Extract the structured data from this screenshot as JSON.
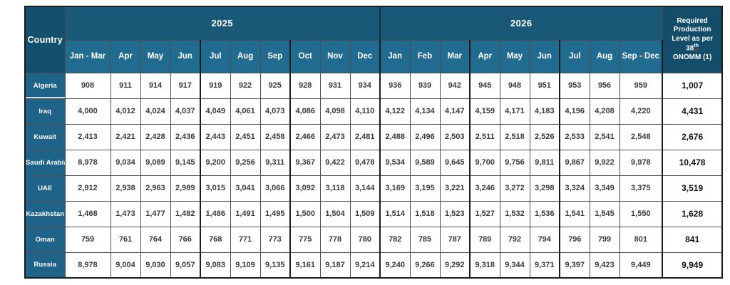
{
  "colors": {
    "year_band_bg": "#1a5878",
    "corner_header_bg": "#14506d",
    "month_row_bg": "#226b90",
    "country_cell_bg": "#1f6488",
    "required_header_bg": "#134d69",
    "header_text": "#ffffff",
    "data_text": "#3a3a3a",
    "required_value_text": "#111111",
    "thin_border": "#4d4d4d",
    "thick_border": "#1c1c1c",
    "spellcheck_underline": "#e03131"
  },
  "table": {
    "corner_label": "Country",
    "year_2025_label": "2025",
    "year_2026_label": "2026",
    "months_2025": [
      "Jan - Mar",
      "Apr",
      "May",
      "Jun",
      "Jul",
      "Aug",
      "Sep",
      "Oct",
      "Nov",
      "Dec"
    ],
    "months_2026": [
      "Jan",
      "Feb",
      "Mar",
      "Apr",
      "May",
      "Jun",
      "Jul",
      "Aug",
      "Sep - Dec"
    ],
    "required_header": {
      "line1": "Required",
      "line2": "Production",
      "line3": "Level as per",
      "number": "38",
      "number_suffix": "th",
      "line4": "ONOMM (1)"
    },
    "rows": [
      {
        "country": "Algeria",
        "y2025": [
          "908",
          "911",
          "914",
          "917",
          "919",
          "922",
          "925",
          "928",
          "931",
          "934"
        ],
        "y2026": [
          "936",
          "939",
          "942",
          "945",
          "948",
          "951",
          "953",
          "956",
          "959"
        ],
        "required": "1,007"
      },
      {
        "country": "Iraq",
        "y2025": [
          "4,000",
          "4,012",
          "4,024",
          "4,037",
          "4,049",
          "4,061",
          "4,073",
          "4,086",
          "4,098",
          "4,110"
        ],
        "y2026": [
          "4,122",
          "4,134",
          "4,147",
          "4,159",
          "4,171",
          "4,183",
          "4,196",
          "4,208",
          "4,220"
        ],
        "required": "4,431"
      },
      {
        "country": "Kuwait",
        "y2025": [
          "2,413",
          "2,421",
          "2,428",
          "2,436",
          "2,443",
          "2,451",
          "2,458",
          "2,466",
          "2,473",
          "2,481"
        ],
        "y2026": [
          "2,488",
          "2,496",
          "2,503",
          "2,511",
          "2,518",
          "2,526",
          "2,533",
          "2,541",
          "2,548"
        ],
        "required": "2,676"
      },
      {
        "country": "Saudi Arabia",
        "y2025": [
          "8,978",
          "9,034",
          "9,089",
          "9,145",
          "9,200",
          "9,256",
          "9,311",
          "9,367",
          "9,422",
          "9,478"
        ],
        "y2026": [
          "9,534",
          "9,589",
          "9,645",
          "9,700",
          "9,756",
          "9,811",
          "9,867",
          "9,922",
          "9,978"
        ],
        "required": "10,478"
      },
      {
        "country": "UAE",
        "y2025": [
          "2,912",
          "2,938",
          "2,963",
          "2,989",
          "3,015",
          "3,041",
          "3,066",
          "3,092",
          "3,118",
          "3,144"
        ],
        "y2026": [
          "3,169",
          "3,195",
          "3,221",
          "3,246",
          "3,272",
          "3,298",
          "3,324",
          "3,349",
          "3,375"
        ],
        "required": "3,519"
      },
      {
        "country": "Kazakhstan",
        "y2025": [
          "1,468",
          "1,473",
          "1,477",
          "1,482",
          "1,486",
          "1,491",
          "1,495",
          "1,500",
          "1,504",
          "1,509"
        ],
        "y2026": [
          "1,514",
          "1,518",
          "1,523",
          "1,527",
          "1,532",
          "1,536",
          "1,541",
          "1,545",
          "1,550"
        ],
        "required": "1,628"
      },
      {
        "country": "Oman",
        "y2025": [
          "759",
          "761",
          "764",
          "766",
          "768",
          "771",
          "773",
          "775",
          "778",
          "780"
        ],
        "y2026": [
          "782",
          "785",
          "787",
          "789",
          "792",
          "794",
          "796",
          "799",
          "801"
        ],
        "required": "841"
      },
      {
        "country": "Russia",
        "y2025": [
          "8,978",
          "9,004",
          "9,030",
          "9,057",
          "9,083",
          "9,109",
          "9,135",
          "9,161",
          "9,187",
          "9,214"
        ],
        "y2026": [
          "9,240",
          "9,266",
          "9,292",
          "9,318",
          "9,344",
          "9,371",
          "9,397",
          "9,423",
          "9,449"
        ],
        "required": "9,949"
      }
    ]
  }
}
